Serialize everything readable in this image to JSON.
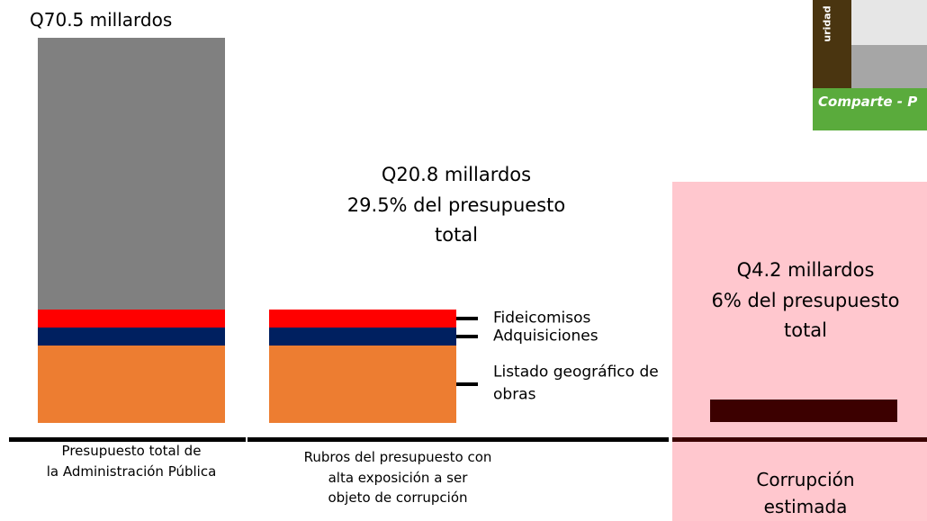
{
  "chart_data": {
    "type": "stacked_bar",
    "categories": [
      "Presupuesto total de\nla Administración Pública",
      "Rubros del presupuesto con\nalta exposición a ser\nobjeto de corrupción",
      "Corrupción\nestimada"
    ],
    "series": [
      {
        "name": "Listado geográfico de\nobras",
        "color": "#ed7d31",
        "values": [
          14.2,
          14.2,
          null
        ]
      },
      {
        "name": "Adquisiciones",
        "color": "#002060",
        "values": [
          3.3,
          3.3,
          null
        ]
      },
      {
        "name": "Fideicomisos",
        "color": "#ff0000",
        "values": [
          3.3,
          3.3,
          null
        ]
      },
      {
        "color": "#808080",
        "values": [
          49.7,
          null,
          null
        ]
      },
      {
        "color": "#3c0000",
        "values": [
          null,
          null,
          4.2
        ]
      }
    ],
    "ylim": [
      0,
      70.5
    ],
    "annotations": [
      "Q70.5 millardos",
      "Q20.8 millardos\n29.5% del presupuesto\ntotal",
      "Q4.2 millardos\n6% del presupuesto\ntotal"
    ]
  },
  "corner_image": {
    "side_text": "uridad",
    "banner": "Comparte - P"
  }
}
